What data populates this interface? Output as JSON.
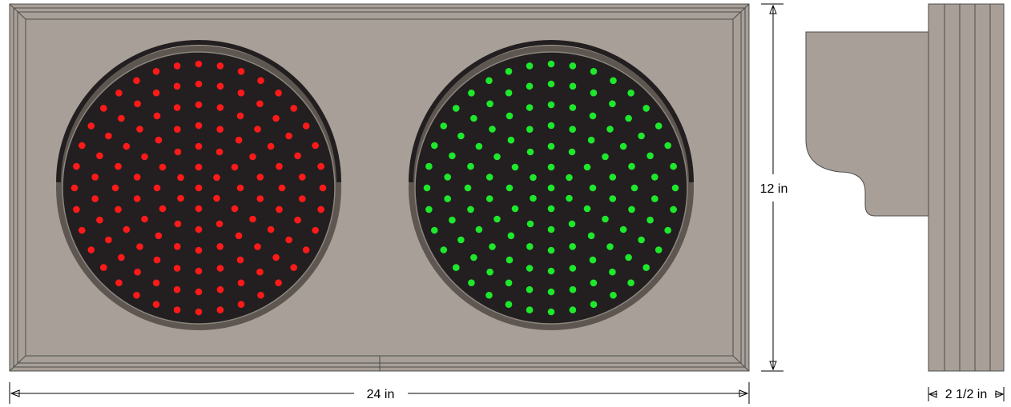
{
  "diagram": {
    "dimensions": {
      "width_label": "24 in",
      "height_label": "12 in",
      "depth_label": "2 1/2 in"
    },
    "colors": {
      "housing": "#a8a098",
      "housing_edge": "#4d4d4d",
      "lens_face": "#231f20",
      "lens_ring": "#5e5650",
      "lens_ring_light": "#8c857e",
      "red_led": "#ff1a1a",
      "green_led": "#1ee82c"
    },
    "lights": [
      {
        "name": "red-signal",
        "led_color_key": "red_led"
      },
      {
        "name": "green-signal",
        "led_color_key": "green_led"
      }
    ]
  }
}
